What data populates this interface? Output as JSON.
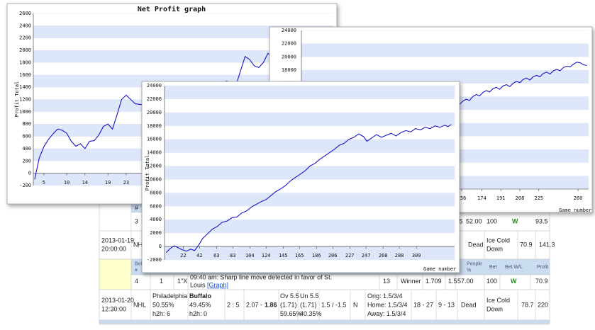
{
  "charts": [
    {
      "type": "line",
      "title": "Net Profit graph",
      "y_label": "Profit Total",
      "x": [
        3,
        4,
        5,
        6,
        7,
        8,
        9,
        10,
        11,
        12,
        13,
        14,
        15,
        16,
        17,
        18,
        19,
        20,
        21,
        22,
        23,
        24,
        25,
        28,
        32,
        36,
        40,
        43,
        45,
        47,
        49,
        50,
        51,
        52,
        53,
        54,
        55,
        57
      ],
      "values": [
        -100,
        250,
        430,
        550,
        640,
        720,
        700,
        650,
        520,
        440,
        480,
        400,
        520,
        530,
        620,
        760,
        800,
        720,
        950,
        1200,
        1270,
        1200,
        1130,
        1100,
        1200,
        1300,
        1400,
        1450,
        1500,
        1430,
        1900,
        1850,
        1750,
        1720,
        1800,
        1950,
        1900,
        1850
      ],
      "color": "#1414c8",
      "xlim": [
        2.7,
        68.3
      ],
      "xticks": [
        5,
        10,
        14,
        19,
        23
      ],
      "ylim": [
        -200,
        2600
      ],
      "yticks": [
        -200,
        0,
        200,
        400,
        600,
        800,
        1000,
        1200,
        1400,
        1600,
        1800,
        2000,
        2200,
        2400,
        2600
      ],
      "grid": true
    },
    {
      "type": "line",
      "x_label": "Game number",
      "x": [
        154,
        157,
        160,
        163,
        166,
        169,
        172,
        175,
        178,
        181,
        184,
        187,
        190,
        193,
        196,
        199,
        202,
        205,
        208,
        211,
        214,
        217,
        220,
        223,
        226,
        229,
        232,
        235,
        238,
        241,
        244,
        247,
        250,
        253,
        256,
        259,
        262,
        265,
        268
      ],
      "values": [
        12800,
        13300,
        13600,
        13400,
        14000,
        14300,
        14100,
        14600,
        14900,
        14700,
        15200,
        15400,
        15100,
        15600,
        15800,
        15500,
        16000,
        16300,
        16100,
        16600,
        16800,
        16500,
        17000,
        17200,
        17000,
        17500,
        17700,
        17400,
        17900,
        18100,
        17900,
        18400,
        18600,
        18500,
        18900,
        19200,
        19100,
        18800,
        18700
      ],
      "color": "#1414c8",
      "xlim": [
        12.7,
        269.5
      ],
      "xticks": [
        156,
        174,
        191,
        208,
        225,
        260
      ],
      "ylim": [
        0,
        24000
      ],
      "yticks": [
        16000,
        18000,
        20000,
        22000,
        24000
      ],
      "grid": true
    },
    {
      "type": "line",
      "x_label": "Game number",
      "y_label": "Profit Total",
      "x": [
        1,
        6,
        11,
        16,
        21,
        26,
        31,
        36,
        41,
        46,
        52,
        58,
        64,
        70,
        76,
        82,
        88,
        94,
        100,
        106,
        112,
        118,
        124,
        130,
        136,
        142,
        148,
        154,
        160,
        166,
        172,
        178,
        184,
        190,
        196,
        202,
        208,
        214,
        220,
        226,
        232,
        238,
        244,
        248,
        254,
        260,
        266,
        272,
        278,
        284,
        290,
        296,
        302,
        308,
        314,
        320,
        326,
        332,
        338,
        344,
        348,
        352
      ],
      "values": [
        -900,
        -300,
        100,
        -200,
        -500,
        -700,
        -400,
        -600,
        200,
        1200,
        1900,
        2600,
        3000,
        3600,
        3800,
        4300,
        4400,
        5000,
        5300,
        5900,
        6300,
        6700,
        7000,
        7600,
        8200,
        8600,
        9100,
        9800,
        10300,
        10800,
        11300,
        12000,
        12400,
        13000,
        13500,
        14000,
        14500,
        15100,
        15400,
        16000,
        16300,
        16800,
        16400,
        15700,
        16200,
        16700,
        16300,
        16600,
        16900,
        16500,
        17000,
        17300,
        17100,
        17600,
        17400,
        17800,
        17600,
        18000,
        17800,
        18100,
        17900,
        18200
      ],
      "color": "#1414c8",
      "xlim": [
        -1,
        356
      ],
      "xticks": [
        22,
        42,
        63,
        83,
        104,
        124,
        145,
        165,
        186,
        206,
        227,
        247,
        268,
        288,
        309
      ],
      "ylim": [
        -2000,
        24000
      ],
      "yticks": [
        -2000,
        0,
        2000,
        4000,
        6000,
        8000,
        10000,
        12000,
        14000,
        16000,
        18000,
        20000,
        22000,
        24000
      ],
      "grid": true
    }
  ],
  "table": {
    "header_top": [
      "#"
    ],
    "header": [
      [
        "Bet",
        "#"
      ],
      [
        "People",
        "%"
      ],
      "Bet",
      "Bet W/L",
      "Profit"
    ],
    "rows": [
      [
        "3",
        ".5",
        "52.00",
        "100",
        "W",
        "93.5"
      ],
      [
        [
          "2013-01-19",
          "20:00:00"
        ],
        "NHL",
        "Dead",
        [
          "Ice Cold",
          "Down"
        ],
        "70.9",
        "141.3"
      ],
      [
        "4",
        "1",
        "1\"X",
        [
          "09:40 am: Sharp line move detected in favor of St.",
          "Louis"
        ],
        "[Graph]",
        "13",
        "Winner",
        "1.709",
        "1.5",
        "57.00",
        "100",
        "W",
        "70.9"
      ],
      [
        [
          "2013-01-20",
          "12:30:00"
        ],
        "NHL",
        [
          "Philadelphia",
          "50.55%",
          "h2h: 6"
        ],
        [
          "Buffalo",
          "49.45%",
          "h2h: 0"
        ],
        "2 : 5",
        "2.07 -",
        "1.86",
        [
          "Ov 5.5",
          "(1.71)",
          "59.65%"
        ],
        [
          "Un 5.5",
          "(1.71)",
          "40.35%"
        ],
        "1.5 / -1.5",
        "N",
        [
          "Orig: 1.5/3/4",
          "Home: 1.5/3/4",
          "Away: 1.5/3/4"
        ],
        "18 - 27",
        "9 - 13",
        "Dead",
        [
          "Ice Cold",
          "Down"
        ],
        "78.7",
        "220"
      ]
    ]
  }
}
